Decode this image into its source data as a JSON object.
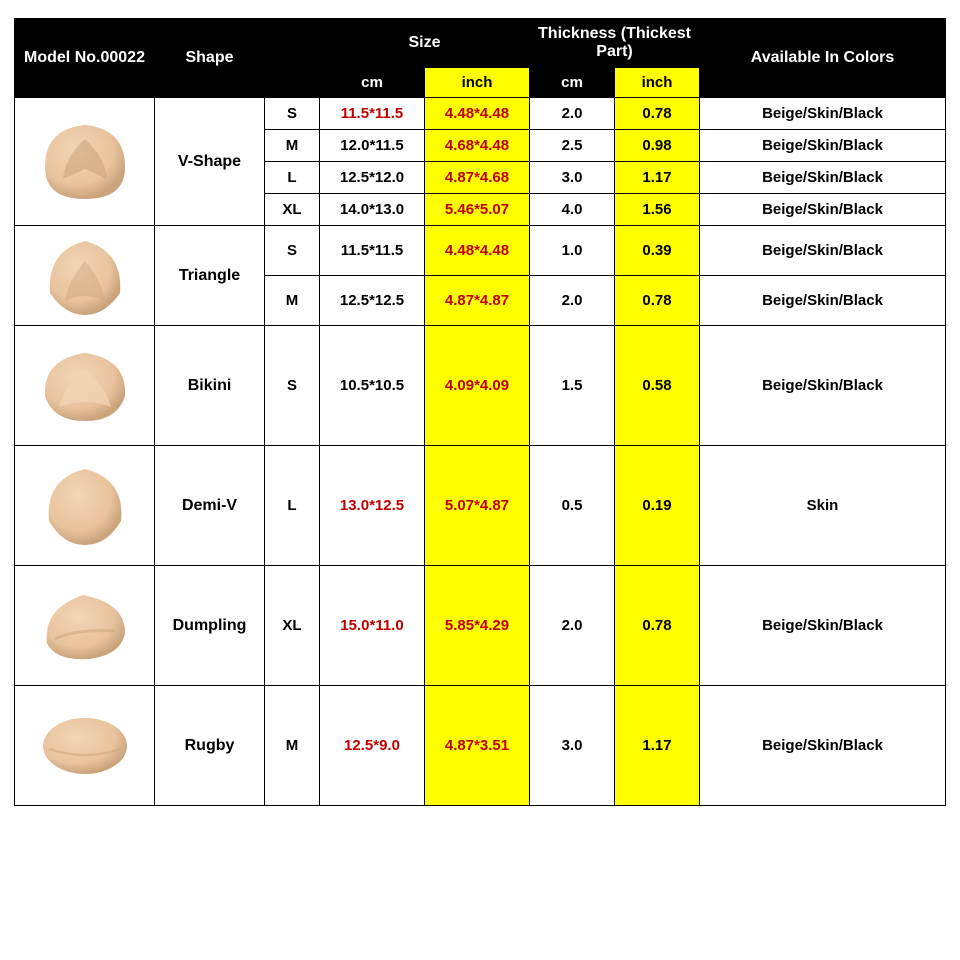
{
  "headers": {
    "model": "Model No.00022",
    "shape": "Shape",
    "size_group": "Size",
    "thickness_group": "Thickness (Thickest Part)",
    "colors": "Available In Colors",
    "cm": "cm",
    "inch": "inch"
  },
  "styling": {
    "header_bg": "#000000",
    "header_fg": "#ffffff",
    "highlight_bg": "#ffff00",
    "red_text": "#c00000",
    "border_color": "#000000",
    "body_bg": "#ffffff",
    "pad_fill": "#e8c39e",
    "pad_highlight": "#f2d6b3",
    "pad_shadow": "#c9a37a",
    "font_family": "Arial",
    "header_fontsize": 16,
    "cell_fontsize": 15
  },
  "shapes": [
    {
      "name": "V-Shape",
      "icon": "vshape",
      "rows": [
        {
          "size": "S",
          "size_cm": "11.5*11.5",
          "size_in": "4.48*4.48",
          "thick_cm": "2.0",
          "thick_in": "0.78",
          "colors": "Beige/Skin/Black",
          "cm_red": true
        },
        {
          "size": "M",
          "size_cm": "12.0*11.5",
          "size_in": "4.68*4.48",
          "thick_cm": "2.5",
          "thick_in": "0.98",
          "colors": "Beige/Skin/Black",
          "cm_red": false
        },
        {
          "size": "L",
          "size_cm": "12.5*12.0",
          "size_in": "4.87*4.68",
          "thick_cm": "3.0",
          "thick_in": "1.17",
          "colors": "Beige/Skin/Black",
          "cm_red": false
        },
        {
          "size": "XL",
          "size_cm": "14.0*13.0",
          "size_in": "5.46*5.07",
          "thick_cm": "4.0",
          "thick_in": "1.56",
          "colors": "Beige/Skin/Black",
          "cm_red": false
        }
      ]
    },
    {
      "name": "Triangle",
      "icon": "triangle",
      "rows": [
        {
          "size": "S",
          "size_cm": "11.5*11.5",
          "size_in": "4.48*4.48",
          "thick_cm": "1.0",
          "thick_in": "0.39",
          "colors": "Beige/Skin/Black",
          "cm_red": false
        },
        {
          "size": "M",
          "size_cm": "12.5*12.5",
          "size_in": "4.87*4.87",
          "thick_cm": "2.0",
          "thick_in": "0.78",
          "colors": "Beige/Skin/Black",
          "cm_red": false
        }
      ]
    },
    {
      "name": "Bikini",
      "icon": "bikini",
      "rows": [
        {
          "size": "S",
          "size_cm": "10.5*10.5",
          "size_in": "4.09*4.09",
          "thick_cm": "1.5",
          "thick_in": "0.58",
          "colors": "Beige/Skin/Black",
          "cm_red": false
        }
      ]
    },
    {
      "name": "Demi-V",
      "icon": "demiv",
      "rows": [
        {
          "size": "L",
          "size_cm": "13.0*12.5",
          "size_in": "5.07*4.87",
          "thick_cm": "0.5",
          "thick_in": "0.19",
          "colors": "Skin",
          "cm_red": true
        }
      ]
    },
    {
      "name": "Dumpling",
      "icon": "dumpling",
      "rows": [
        {
          "size": "XL",
          "size_cm": "15.0*11.0",
          "size_in": "5.85*4.29",
          "thick_cm": "2.0",
          "thick_in": "0.78",
          "colors": "Beige/Skin/Black",
          "cm_red": true
        }
      ]
    },
    {
      "name": "Rugby",
      "icon": "rugby",
      "rows": [
        {
          "size": "M",
          "size_cm": "12.5*9.0",
          "size_in": "4.87*3.51",
          "thick_cm": "3.0",
          "thick_in": "1.17",
          "colors": "Beige/Skin/Black",
          "cm_red": true
        }
      ]
    }
  ]
}
